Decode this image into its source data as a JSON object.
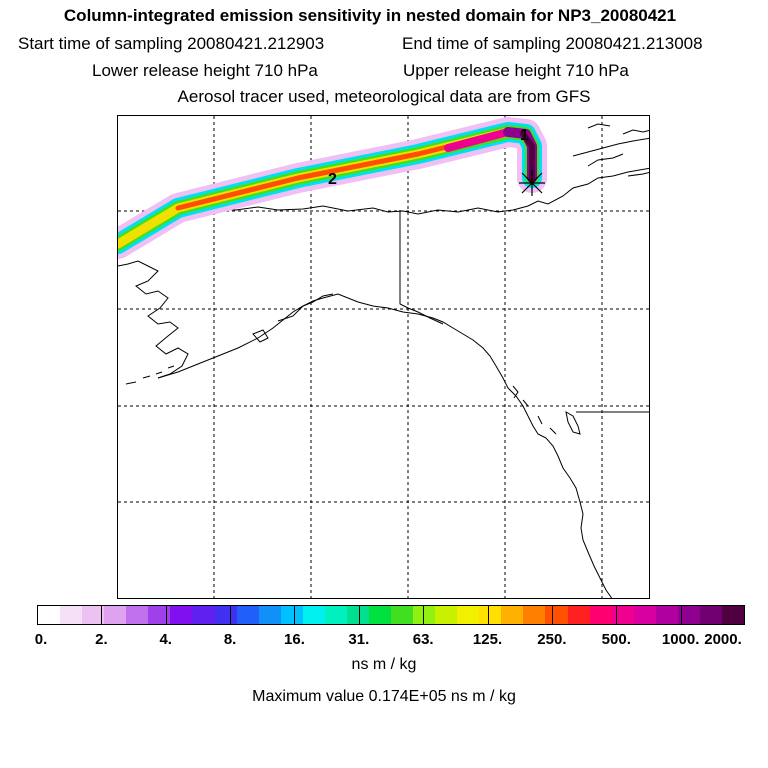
{
  "title": "Column-integrated emission sensitivity in nested domain for NP3_20080421",
  "sampling": {
    "start": "Start time of sampling 20080421.212903",
    "end": "End time of sampling 20080421.213008"
  },
  "release": {
    "lower": "Lower release height  710 hPa",
    "upper": "Upper release height  710 hPa"
  },
  "note": "Aerosol tracer used, meteorological data are from GFS",
  "map": {
    "trajectory_labels": [
      "1",
      "2"
    ],
    "release_marker": "star-marker"
  },
  "colorbar": {
    "colors": [
      "#ffffff",
      "#f6e0f8",
      "#ecc2f2",
      "#dfa2ee",
      "#c070ec",
      "#a040e8",
      "#8010f0",
      "#6020f0",
      "#4030f0",
      "#2060f8",
      "#1090f8",
      "#00c0ff",
      "#00f0f0",
      "#00f0c0",
      "#00e090",
      "#00e040",
      "#40e020",
      "#90f010",
      "#c8f000",
      "#f0f000",
      "#ffe000",
      "#ffb000",
      "#ff8000",
      "#ff5000",
      "#ff2020",
      "#ff0070",
      "#f00090",
      "#d800a0",
      "#b000a0",
      "#900090",
      "#700070",
      "#500040"
    ],
    "ticks": [
      "0.",
      "2.",
      "4.",
      "8.",
      "16.",
      "31.",
      "63.",
      "125.",
      "250.",
      "500.",
      "1000.",
      "2000."
    ],
    "unit": "ns m / kg"
  },
  "max_value": "Maximum value  0.174E+05 ns m / kg"
}
